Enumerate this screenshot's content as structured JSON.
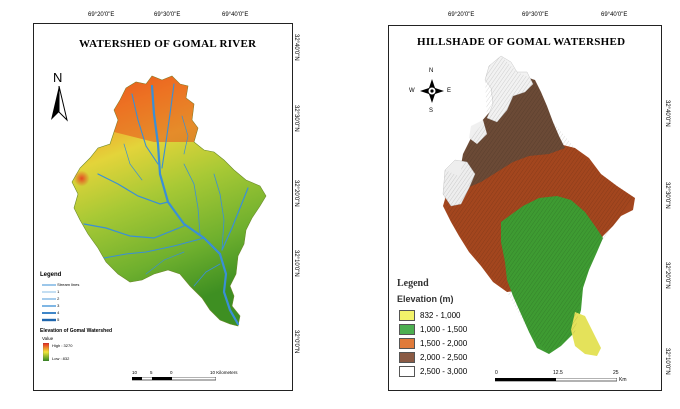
{
  "left_map": {
    "title": "WATERSHED OF GOMAL RIVER",
    "top_ticks": [
      "69°20'0\"E",
      "69°30'0\"E",
      "69°40'0\"E"
    ],
    "side_ticks": [
      "32°40'0\"N",
      "32°30'0\"N",
      "32°20'0\"N",
      "32°10'0\"N",
      "32°0'0\"N"
    ],
    "north_label": "N",
    "legend": {
      "title": "Legend",
      "stream_items": [
        "Stream lines",
        "1",
        "2",
        "3",
        "4",
        "5"
      ],
      "elevation_title": "Elevation of Gomal Watershed",
      "value_label": "Value",
      "high_label": "High : 3270",
      "low_label": "Low : 832"
    },
    "scale": {
      "labels": [
        "10",
        "5",
        "0",
        "10 Kilometers"
      ]
    }
  },
  "right_map": {
    "title": "HILLSHADE OF GOMAL WATERSHED",
    "top_ticks": [
      "69°20'0\"E",
      "69°30'0\"E",
      "69°40'0\"E"
    ],
    "side_ticks": [
      "32°40'0\"N",
      "32°30'0\"N",
      "32°20'0\"N",
      "32°10'0\"N",
      "32°0'0\"N"
    ],
    "compass": {
      "n": "N",
      "s": "S",
      "e": "E",
      "w": "W"
    },
    "legend": {
      "title": "Legend",
      "subtitle": "Elevation (m)",
      "items": [
        {
          "label": "832 - 1,000",
          "color": "#f3f36a"
        },
        {
          "label": "1,000 - 1,500",
          "color": "#4caf50"
        },
        {
          "label": "1,500 - 2,000",
          "color": "#e07a3a"
        },
        {
          "label": "2,000 - 2,500",
          "color": "#8a5a44"
        },
        {
          "label": "2,500 - 3,000",
          "color": "#ffffff"
        }
      ]
    },
    "scale": {
      "labels": [
        "0",
        "12.5",
        "25"
      ],
      "unit": "Km"
    }
  }
}
